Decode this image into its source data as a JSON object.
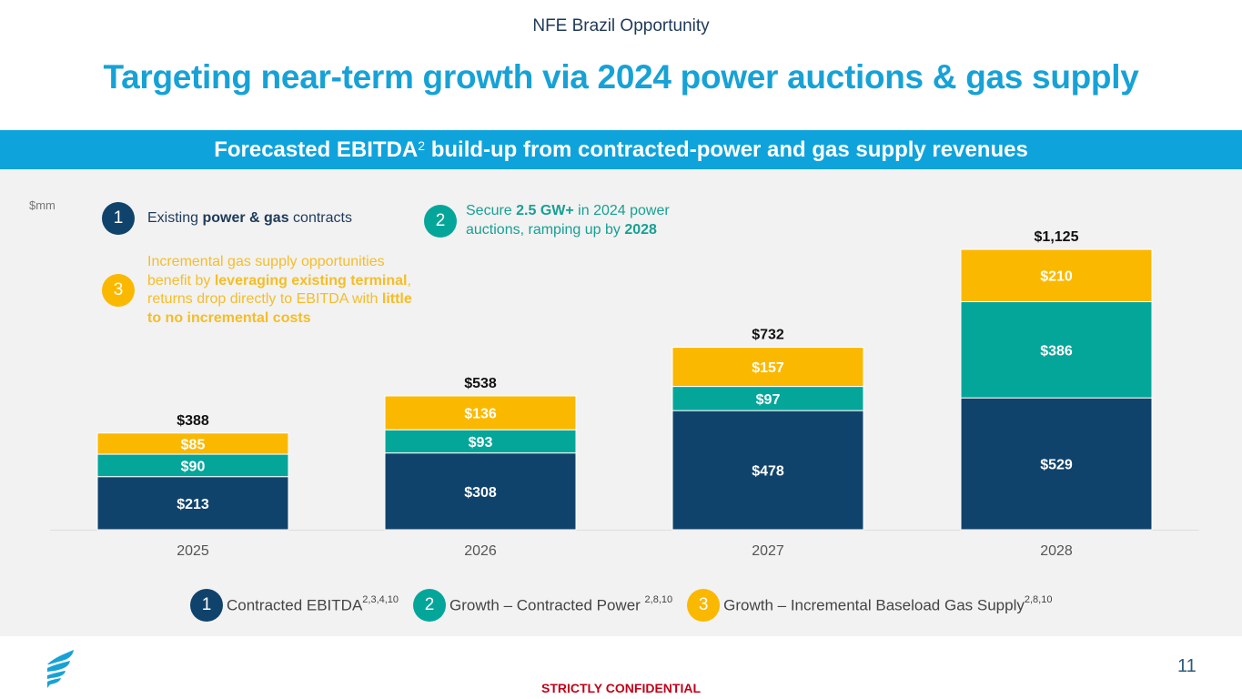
{
  "header": {
    "section": "NFE Brazil Opportunity",
    "title": "Targeting near-term growth via 2024 power auctions & gas supply",
    "banner": "Forecasted EBITDA",
    "banner_sup": "2",
    "banner_rest": " build-up from contracted-power and gas supply revenues"
  },
  "notes": {
    "unit": "$mm",
    "n1": {
      "num": "1",
      "parts": [
        "Existing ",
        "power & gas",
        " contracts"
      ]
    },
    "n2": {
      "num": "2",
      "parts": [
        "Secure ",
        "2.5 GW+",
        " in 2024 power auctions, ramping up by ",
        "2028"
      ]
    },
    "n3": {
      "num": "3",
      "parts": [
        "Incremental gas supply opportunities benefit by ",
        "leveraging existing terminal",
        ", returns drop directly to EBITDA with ",
        "little to no incremental costs"
      ]
    }
  },
  "colors": {
    "contracted": "#10436b",
    "power": "#05a69a",
    "gas": "#fbb800"
  },
  "chart_data": {
    "type": "bar",
    "stacked": true,
    "title": "Forecasted EBITDA build-up from contracted-power and gas supply revenues",
    "ylabel": "$mm",
    "categories": [
      "2025",
      "2026",
      "2027",
      "2028"
    ],
    "series": [
      {
        "name": "Contracted EBITDA",
        "values": [
          213,
          308,
          478,
          529
        ],
        "labels": [
          "$213",
          "$308",
          "$478",
          "$529"
        ]
      },
      {
        "name": "Growth - Contracted Power",
        "values": [
          90,
          93,
          97,
          386
        ],
        "labels": [
          "$90",
          "$93",
          "$97",
          "$386"
        ]
      },
      {
        "name": "Growth - Incremental Baseload Gas Supply",
        "values": [
          85,
          136,
          157,
          210
        ],
        "labels": [
          "$85",
          "$136",
          "$157",
          "$210"
        ]
      }
    ],
    "totals": [
      388,
      538,
      732,
      1125
    ],
    "total_labels": [
      "$388",
      "$538",
      "$732",
      "$1,125"
    ],
    "ylim": [
      0,
      1125
    ],
    "grid": false,
    "legend_position": "bottom"
  },
  "legend": [
    {
      "num": "1",
      "label": "Contracted EBITDA",
      "sup": "2,3,4,10"
    },
    {
      "num": "2",
      "label": "Growth – Contracted Power ",
      "sup": "2,8,10"
    },
    {
      "num": "3",
      "label": "Growth – Incremental Baseload Gas Supply",
      "sup": "2,8,10"
    }
  ],
  "footer": {
    "confidential": "STRICTLY CONFIDENTIAL",
    "page": "11"
  }
}
